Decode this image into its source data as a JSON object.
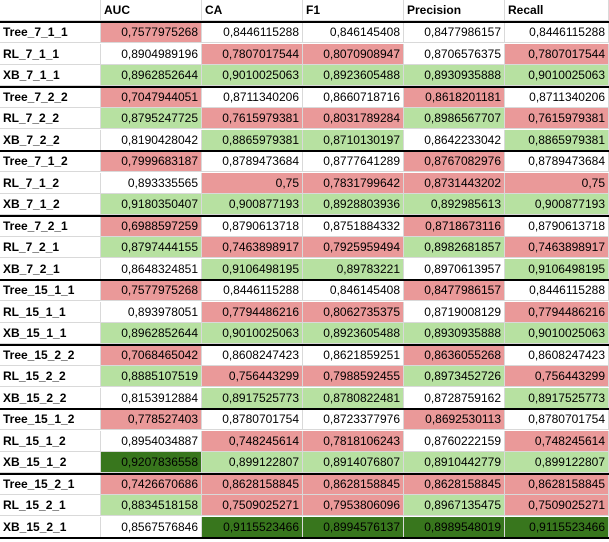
{
  "header": {
    "corner": "",
    "cols": [
      "AUC",
      "CA",
      "F1",
      "Precision",
      "Recall"
    ]
  },
  "rows": [
    {
      "label": "Tree_7_1_1",
      "values": [
        "0,7577975268",
        "0,8446115288",
        "0,846145408",
        "0,8477986157",
        "0,8446115288"
      ]
    },
    {
      "label": "RL_7_1_1",
      "values": [
        "0,8904989196",
        "0,7807017544",
        "0,8070908947",
        "0,8706576375",
        "0,7807017544"
      ]
    },
    {
      "label": "XB_7_1_1",
      "values": [
        "0,8962852644",
        "0,9010025063",
        "0,8923605488",
        "0,8930935888",
        "0,9010025063"
      ]
    },
    {
      "label": "Tree_7_2_2",
      "values": [
        "0,7047944051",
        "0,8711340206",
        "0,8660718716",
        "0,8618201181",
        "0,8711340206"
      ]
    },
    {
      "label": "RL_7_2_2",
      "values": [
        "0,8795247725",
        "0,7615979381",
        "0,8031789284",
        "0,8986567707",
        "0,7615979381"
      ]
    },
    {
      "label": "XB_7_2_2",
      "values": [
        "0,8190428042",
        "0,8865979381",
        "0,8710130197",
        "0,8642233042",
        "0,8865979381"
      ]
    },
    {
      "label": "Tree_7_1_2",
      "values": [
        "0,7999683187",
        "0,8789473684",
        "0,8777641289",
        "0,876708297​6",
        "0,8789473684"
      ]
    },
    {
      "label": "RL_7_1_2",
      "values": [
        "0,893335565",
        "0,75",
        "0,7831799642",
        "0,8731443202",
        "0,75"
      ]
    },
    {
      "label": "XB_7_1_2",
      "values": [
        "0,9180350407",
        "0,900877193",
        "0,8928803936",
        "0,892985613",
        "0,900877193"
      ]
    },
    {
      "label": "Tree_7_2_1",
      "values": [
        "0,6988597259",
        "0,8790613718",
        "0,8751884332",
        "0,8718673116",
        "0,8790613718"
      ]
    },
    {
      "label": "RL_7_2_1",
      "values": [
        "0,8797444155",
        "0,7463898917",
        "0,7925959494",
        "0,8982681857",
        "0,7463898917"
      ]
    },
    {
      "label": "XB_7_2_1",
      "values": [
        "0,8648324851",
        "0,9106498195",
        "0,89783221",
        "0,8970613957",
        "0,9106498195"
      ]
    },
    {
      "label": "Tree_15_1_1",
      "values": [
        "0,7577975268",
        "0,8446115288",
        "0,846145408",
        "0,8477986157",
        "0,8446115288"
      ]
    },
    {
      "label": "RL_15_1_1",
      "values": [
        "0,893978051",
        "0,7794486216",
        "0,8062735375",
        "0,8719008129",
        "0,7794486216"
      ]
    },
    {
      "label": "XB_15_1_1",
      "values": [
        "0,8962852644",
        "0,9010025063",
        "0,8923605488",
        "0,8930935888",
        "0,9010025063"
      ]
    },
    {
      "label": "Tree_15_2_2",
      "values": [
        "0,7068465042",
        "0,8608247423",
        "0,8621859251",
        "0,8636055268",
        "0,8608247423"
      ]
    },
    {
      "label": "RL_15_2_2",
      "values": [
        "0,8885107519",
        "0,756443299",
        "0,7988592455",
        "0,8973452726",
        "0,756443299"
      ]
    },
    {
      "label": "XB_15_2_2",
      "values": [
        "0,8153912884",
        "0,8917525773",
        "0,8780822481",
        "0,8728759162",
        "0,8917525773"
      ]
    },
    {
      "label": "Tree_15_1_2",
      "values": [
        "0,778527403",
        "0,8780701754",
        "0,8723377976",
        "0,8692530113",
        "0,8780701754"
      ]
    },
    {
      "label": "RL_15_1_2",
      "values": [
        "0,8954034887",
        "0,748245614",
        "0,7818106243",
        "0,8760222159",
        "0,748245614"
      ]
    },
    {
      "label": "XB_15_1_2",
      "values": [
        "0,9207836558",
        "0,899122807",
        "0,8914076807",
        "0,8910442779",
        "0,899122807"
      ]
    },
    {
      "label": "Tree_15_2_1",
      "values": [
        "0,7426670686",
        "0,8628158845",
        "0,8628158845",
        "0,8628158845",
        "0,8628158845"
      ]
    },
    {
      "label": "RL_15_2_1",
      "values": [
        "0,8834518158",
        "0,7509025271",
        "0,7953806096",
        "0,8967135475",
        "0,7509025271"
      ]
    },
    {
      "label": "XB_15_2_1",
      "values": [
        "0,8567576846",
        "0,9115523466",
        "0,8994576137",
        "0,8989548019",
        "0,9115523466"
      ]
    }
  ],
  "colors": {
    "pink": "#ea9999",
    "light_green": "#b7e1a1",
    "dark_green": "#38761d",
    "white": "#ffffff",
    "gridline": "#d9d9d9",
    "group_border": "#000000"
  },
  "fills": [
    [
      "pink",
      "white",
      "white",
      "white",
      "white"
    ],
    [
      "white",
      "pink",
      "pink",
      "white",
      "pink"
    ],
    [
      "green",
      "green",
      "green",
      "green",
      "green"
    ],
    [
      "pink",
      "white",
      "white",
      "pink",
      "white"
    ],
    [
      "green",
      "pink",
      "pink",
      "green",
      "pink"
    ],
    [
      "white",
      "green",
      "green",
      "white",
      "green"
    ],
    [
      "pink",
      "white",
      "white",
      "pink",
      "white"
    ],
    [
      "white",
      "pink",
      "pink",
      "pink",
      "pink"
    ],
    [
      "green",
      "green",
      "green",
      "green",
      "green"
    ],
    [
      "pink",
      "white",
      "white",
      "pink",
      "white"
    ],
    [
      "green",
      "pink",
      "pink",
      "green",
      "pink"
    ],
    [
      "white",
      "green",
      "green",
      "white",
      "green"
    ],
    [
      "pink",
      "white",
      "white",
      "pink",
      "white"
    ],
    [
      "white",
      "pink",
      "pink",
      "white",
      "pink"
    ],
    [
      "green",
      "green",
      "green",
      "green",
      "green"
    ],
    [
      "pink",
      "white",
      "white",
      "pink",
      "white"
    ],
    [
      "green",
      "pink",
      "pink",
      "green",
      "pink"
    ],
    [
      "white",
      "green",
      "green",
      "white",
      "green"
    ],
    [
      "pink",
      "white",
      "white",
      "pink",
      "white"
    ],
    [
      "white",
      "pink",
      "pink",
      "white",
      "pink"
    ],
    [
      "dark",
      "green",
      "green",
      "green",
      "green"
    ],
    [
      "pink",
      "pink",
      "pink",
      "pink",
      "pink"
    ],
    [
      "green",
      "pink",
      "pink",
      "green",
      "pink"
    ],
    [
      "white",
      "dark",
      "dark",
      "dark",
      "dark"
    ]
  ]
}
